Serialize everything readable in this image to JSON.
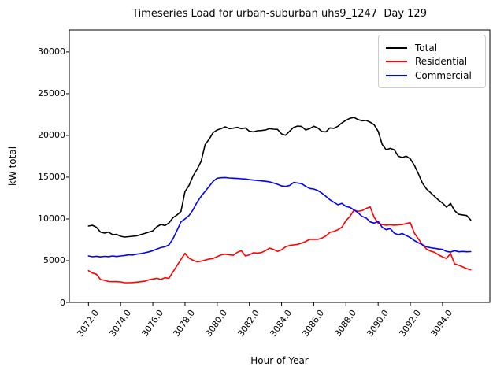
{
  "chart_data": {
    "type": "line",
    "title": "Timeseries Load for urban-suburban uhs9_1247  Day 129",
    "xlabel": "Hour of Year",
    "ylabel": "kW total",
    "grid": false,
    "legend_position": "upper right",
    "xlim": [
      3070.81,
      3096.94
    ],
    "ylim": [
      0,
      32630
    ],
    "xticks": [
      3072,
      3074,
      3076,
      3078,
      3080,
      3082,
      3084,
      3086,
      3088,
      3090,
      3092,
      3094
    ],
    "xtick_labels": [
      "3072.0",
      "3074.0",
      "3076.0",
      "3078.0",
      "3080.0",
      "3082.0",
      "3084.0",
      "3086.0",
      "3088.0",
      "3090.0",
      "3092.0",
      "3094.0"
    ],
    "yticks": [
      0,
      5000,
      10000,
      15000,
      20000,
      25000,
      30000
    ],
    "ytick_labels": [
      "0",
      "5000",
      "10000",
      "15000",
      "20000",
      "25000",
      "30000"
    ],
    "x": [
      3072.0,
      3072.25,
      3072.5,
      3072.75,
      3073.0,
      3073.25,
      3073.5,
      3073.75,
      3074.0,
      3074.25,
      3074.5,
      3074.75,
      3075.0,
      3075.25,
      3075.5,
      3075.75,
      3076.0,
      3076.25,
      3076.5,
      3076.75,
      3077.0,
      3077.25,
      3077.5,
      3077.75,
      3078.0,
      3078.25,
      3078.5,
      3078.75,
      3079.0,
      3079.25,
      3079.5,
      3079.75,
      3080.0,
      3080.25,
      3080.5,
      3080.75,
      3081.0,
      3081.25,
      3081.5,
      3081.75,
      3082.0,
      3082.25,
      3082.5,
      3082.75,
      3083.0,
      3083.25,
      3083.5,
      3083.75,
      3084.0,
      3084.25,
      3084.5,
      3084.75,
      3085.0,
      3085.25,
      3085.5,
      3085.75,
      3086.0,
      3086.25,
      3086.5,
      3086.75,
      3087.0,
      3087.25,
      3087.5,
      3087.75,
      3088.0,
      3088.25,
      3088.5,
      3088.75,
      3089.0,
      3089.25,
      3089.5,
      3089.75,
      3090.0,
      3090.25,
      3090.5,
      3090.75,
      3091.0,
      3091.25,
      3091.5,
      3091.75,
      3092.0,
      3092.25,
      3092.5,
      3092.75,
      3093.0,
      3093.25,
      3093.5,
      3093.75,
      3094.0,
      3094.25,
      3094.5,
      3094.75,
      3095.0,
      3095.25,
      3095.5,
      3095.75
    ],
    "series": [
      {
        "name": "Total",
        "color": "#000000",
        "values": [
          9150,
          9230,
          9000,
          8420,
          8300,
          8420,
          8110,
          8150,
          7920,
          7830,
          7870,
          7920,
          7970,
          8120,
          8260,
          8420,
          8570,
          9050,
          9340,
          9200,
          9520,
          10140,
          10470,
          10890,
          13270,
          14000,
          15150,
          15950,
          16900,
          18900,
          19550,
          20340,
          20650,
          20810,
          21030,
          20810,
          20870,
          20960,
          20810,
          20900,
          20500,
          20430,
          20560,
          20590,
          20650,
          20810,
          20750,
          20720,
          20180,
          20020,
          20500,
          20960,
          21120,
          21070,
          20650,
          20810,
          21100,
          20900,
          20470,
          20430,
          20900,
          20850,
          21100,
          21500,
          21800,
          22050,
          22150,
          21900,
          21750,
          21800,
          21590,
          21280,
          20490,
          18920,
          18290,
          18450,
          18290,
          17510,
          17350,
          17510,
          17190,
          16410,
          15400,
          14300,
          13600,
          13150,
          12700,
          12250,
          11900,
          11400,
          11850,
          11000,
          10550,
          10480,
          10400,
          9870
        ]
      },
      {
        "name": "Residential",
        "color": "#ff0000",
        "values": [
          3800,
          3520,
          3365,
          2740,
          2640,
          2500,
          2480,
          2480,
          2450,
          2360,
          2360,
          2380,
          2420,
          2480,
          2540,
          2700,
          2800,
          2890,
          2740,
          2950,
          2890,
          3650,
          4400,
          5150,
          5880,
          5300,
          5050,
          4870,
          4940,
          5060,
          5200,
          5260,
          5480,
          5700,
          5780,
          5700,
          5650,
          6000,
          6190,
          5560,
          5700,
          5950,
          5900,
          5970,
          6200,
          6500,
          6350,
          6100,
          6300,
          6660,
          6820,
          6880,
          6950,
          7100,
          7300,
          7540,
          7540,
          7540,
          7700,
          7950,
          8390,
          8500,
          8700,
          9020,
          9800,
          10300,
          11060,
          10900,
          11000,
          11250,
          11440,
          10200,
          9500,
          9330,
          9250,
          9300,
          9250,
          9280,
          9330,
          9450,
          9550,
          8300,
          7600,
          6900,
          6400,
          6150,
          6000,
          5700,
          5450,
          5250,
          5880,
          4620,
          4450,
          4250,
          4050,
          3900
        ]
      },
      {
        "name": "Commercial",
        "color": "#0000ff",
        "values": [
          5560,
          5470,
          5530,
          5450,
          5520,
          5480,
          5560,
          5500,
          5560,
          5620,
          5700,
          5680,
          5780,
          5850,
          5940,
          6050,
          6200,
          6380,
          6560,
          6660,
          6880,
          7600,
          8600,
          9650,
          10000,
          10400,
          11100,
          12000,
          12700,
          13300,
          13900,
          14500,
          14870,
          14930,
          14960,
          14900,
          14870,
          14840,
          14810,
          14780,
          14700,
          14650,
          14600,
          14550,
          14500,
          14440,
          14300,
          14150,
          13950,
          13890,
          14000,
          14360,
          14300,
          14210,
          13900,
          13650,
          13580,
          13400,
          13100,
          12700,
          12300,
          12000,
          11690,
          11850,
          11500,
          11380,
          11060,
          10750,
          10300,
          10120,
          9650,
          9500,
          9700,
          9000,
          8700,
          8850,
          8300,
          8100,
          8250,
          8000,
          7760,
          7400,
          7140,
          6900,
          6660,
          6550,
          6480,
          6400,
          6350,
          6100,
          6030,
          6200,
          6060,
          6100,
          6060,
          6080
        ]
      }
    ]
  }
}
